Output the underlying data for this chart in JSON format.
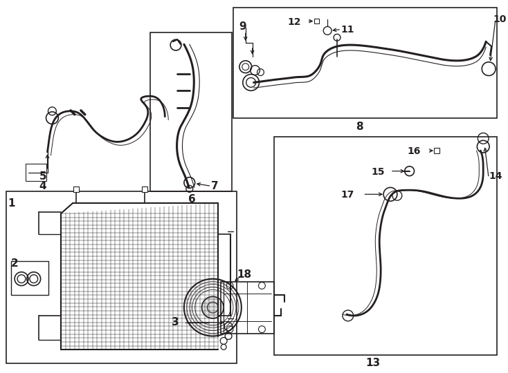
{
  "bg_color": "#ffffff",
  "line_color": "#231f20",
  "fig_width": 7.34,
  "fig_height": 5.4
}
